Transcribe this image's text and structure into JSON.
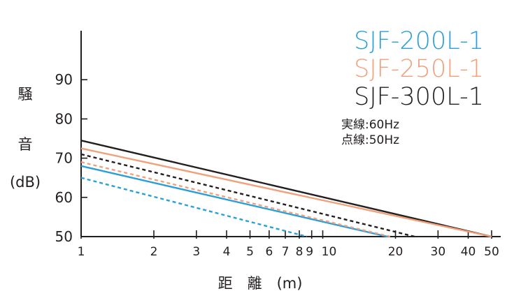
{
  "chart_data": {
    "type": "line",
    "x_scale": "log",
    "xlim": [
      1,
      50
    ],
    "ylim": [
      50,
      100
    ],
    "x_ticks": [
      1,
      2,
      3,
      4,
      5,
      6,
      7,
      8,
      9,
      10,
      20,
      30,
      40,
      50
    ],
    "x_tick_labels": [
      "1",
      "2",
      "3",
      "4",
      "5",
      "6",
      "7",
      "8",
      "9",
      "10",
      "20",
      "30",
      "40",
      "50"
    ],
    "y_ticks": [
      50,
      60,
      70,
      80,
      90
    ],
    "y_tick_labels": [
      "50",
      "60",
      "70",
      "80",
      "90"
    ],
    "ylabel_chars": [
      "騒",
      "音",
      "(dB)"
    ],
    "xlabel": "距　離　(m)",
    "grid": false,
    "legend_position": "top-right",
    "legend_note": [
      "実線:60Hz",
      "点線:50Hz"
    ],
    "legend": [
      {
        "name": "SJF-200L-1",
        "color": "#2a9fd8"
      },
      {
        "name": "SJF-250L-1",
        "color": "#f0a07a"
      },
      {
        "name": "SJF-300L-1",
        "color": "#231f20"
      }
    ],
    "series": [
      {
        "name": "SJF-300L-1",
        "style": "solid",
        "color": "#231f20",
        "x": [
          1,
          50
        ],
        "y": [
          74.5,
          50
        ]
      },
      {
        "name": "SJF-250L-1",
        "style": "solid",
        "color": "#f0a07a",
        "x": [
          1,
          50
        ],
        "y": [
          72.5,
          50
        ]
      },
      {
        "name": "SJF-200L-1",
        "style": "solid",
        "color": "#2a9fd8",
        "x": [
          1,
          18.5
        ],
        "y": [
          68,
          50
        ]
      },
      {
        "name": "SJF-300L-1",
        "style": "dashed",
        "color": "#231f20",
        "x": [
          1,
          24
        ],
        "y": [
          71,
          50
        ]
      },
      {
        "name": "SJF-250L-1",
        "style": "dashed",
        "color": "#f0a07a",
        "x": [
          1,
          19
        ],
        "y": [
          69,
          50
        ]
      },
      {
        "name": "SJF-200L-1",
        "style": "dashed",
        "color": "#2a9fd8",
        "x": [
          1,
          8.6
        ],
        "y": [
          65,
          50
        ]
      }
    ]
  }
}
